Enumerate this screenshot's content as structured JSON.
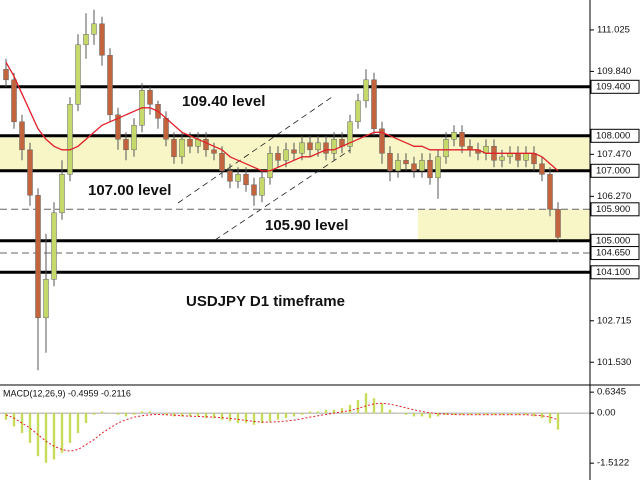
{
  "chart_data": {
    "type": "candlestick",
    "title": "USDJPY D1 timeframe",
    "open": [
      109.9,
      109.6,
      108.4,
      107.6,
      106.3,
      102.8,
      103.9,
      105.8,
      106.9,
      108.9,
      110.6,
      110.9,
      111.2,
      110.3,
      108.6,
      107.9,
      107.6,
      108.3,
      109.3,
      108.9,
      108.5,
      107.9,
      107.4,
      107.9,
      107.7,
      107.9,
      107.6,
      107.5,
      107.0,
      106.7,
      106.9,
      106.6,
      106.3,
      106.8,
      107.5,
      107.3,
      107.6,
      107.5,
      107.8,
      107.6,
      107.8,
      107.5,
      107.9,
      107.7,
      108.4,
      109.0,
      109.6,
      108.2,
      107.5,
      107.0,
      107.3,
      107.2,
      107.0,
      107.3,
      106.8,
      107.4,
      107.9,
      108.1,
      107.7,
      107.6,
      107.5,
      107.7,
      107.3,
      107.4,
      107.5,
      107.3,
      107.5,
      107.2,
      106.9,
      105.9
    ],
    "high": [
      110.2,
      109.8,
      108.6,
      107.8,
      106.5,
      105.2,
      106.1,
      107.3,
      109.1,
      110.9,
      111.5,
      111.6,
      111.4,
      110.5,
      108.8,
      108.1,
      108.5,
      109.5,
      109.4,
      109.0,
      108.7,
      108.1,
      108.1,
      108.1,
      108.1,
      108.1,
      107.8,
      107.7,
      107.2,
      107.1,
      107.1,
      106.8,
      107.0,
      107.7,
      107.7,
      107.8,
      107.8,
      108.0,
      108.0,
      108.0,
      108.0,
      108.1,
      108.1,
      108.6,
      109.2,
      109.9,
      109.8,
      108.4,
      107.7,
      107.5,
      107.5,
      107.4,
      107.5,
      107.5,
      107.6,
      108.1,
      108.3,
      108.3,
      107.9,
      107.8,
      107.9,
      107.9,
      107.6,
      107.7,
      107.7,
      107.7,
      107.7,
      107.4,
      107.1,
      106.1
    ],
    "low": [
      109.4,
      108.2,
      107.3,
      106.0,
      101.3,
      101.8,
      103.7,
      105.6,
      106.7,
      108.7,
      110.2,
      110.6,
      110.0,
      108.4,
      107.6,
      107.3,
      107.4,
      108.1,
      108.6,
      108.2,
      107.7,
      107.2,
      107.2,
      107.5,
      107.5,
      107.4,
      107.3,
      106.8,
      106.5,
      106.5,
      106.4,
      106.0,
      106.1,
      106.6,
      107.1,
      107.1,
      107.3,
      107.3,
      107.4,
      107.4,
      107.3,
      107.3,
      107.5,
      107.5,
      108.2,
      108.8,
      108.0,
      107.2,
      106.7,
      106.8,
      107.0,
      106.8,
      106.8,
      106.6,
      106.2,
      107.2,
      107.7,
      107.5,
      107.4,
      107.3,
      107.3,
      107.1,
      107.1,
      107.2,
      107.1,
      107.1,
      107.0,
      106.7,
      105.7,
      104.95
    ],
    "close": [
      109.6,
      108.4,
      107.6,
      106.3,
      102.8,
      103.9,
      105.8,
      106.9,
      108.9,
      110.6,
      110.9,
      111.2,
      110.3,
      108.6,
      107.9,
      107.6,
      108.3,
      109.3,
      108.9,
      108.5,
      107.9,
      107.4,
      107.9,
      107.7,
      107.9,
      107.6,
      107.5,
      107.0,
      106.7,
      106.9,
      106.6,
      106.3,
      106.8,
      107.5,
      107.3,
      107.6,
      107.5,
      107.8,
      107.6,
      107.8,
      107.5,
      107.9,
      107.7,
      108.4,
      109.0,
      109.6,
      108.2,
      107.5,
      107.0,
      107.3,
      107.2,
      107.0,
      107.3,
      106.8,
      107.4,
      107.9,
      108.1,
      107.7,
      107.6,
      107.5,
      107.7,
      107.3,
      107.4,
      107.5,
      107.3,
      107.5,
      107.2,
      106.9,
      105.9,
      105.1
    ],
    "colors": {
      "up": "#c5d86c",
      "down": "#c2643e",
      "wick": "#555555"
    },
    "ylim": [
      100.88,
      111.88
    ],
    "yticks": [
      111.025,
      {
        "value": 109.84,
        "label": "109.840"
      },
      {
        "value": 107.47,
        "label": "107.470"
      },
      {
        "value": 106.27,
        "label": "106.270"
      },
      102.715,
      {
        "value": 101.53,
        "label": "101.530"
      }
    ],
    "moving_average": {
      "color": "#e0202a",
      "values": [
        110.1,
        109.7,
        109.2,
        108.7,
        108.2,
        107.9,
        107.7,
        107.6,
        107.6,
        107.7,
        107.9,
        108.1,
        108.3,
        108.4,
        108.5,
        108.6,
        108.7,
        108.8,
        108.8,
        108.7,
        108.5,
        108.3,
        108.1,
        108.0,
        107.9,
        107.8,
        107.7,
        107.6,
        107.4,
        107.3,
        107.2,
        107.1,
        107.0,
        107.0,
        107.1,
        107.2,
        107.3,
        107.4,
        107.4,
        107.5,
        107.6,
        107.6,
        107.7,
        107.8,
        107.9,
        108.0,
        108.1,
        108.1,
        108.0,
        107.9,
        107.8,
        107.7,
        107.7,
        107.6,
        107.6,
        107.6,
        107.6,
        107.6,
        107.6,
        107.6,
        107.5,
        107.5,
        107.5,
        107.5,
        107.5,
        107.5,
        107.5,
        107.4,
        107.2,
        107.0
      ]
    },
    "levels": [
      {
        "value": 109.4,
        "label": "109.400",
        "style": "solid"
      },
      {
        "value": 108.0,
        "label": "108.000",
        "style": "solid"
      },
      {
        "value": 107.0,
        "label": "107.000",
        "style": "solid"
      },
      {
        "value": 105.9,
        "label": "105.900",
        "style": "dashed"
      },
      {
        "value": 105.0,
        "label": "105.000",
        "style": "solid"
      },
      {
        "value": 104.65,
        "label": "104.650",
        "style": "dashed"
      },
      {
        "value": 104.1,
        "label": "104.100",
        "style": "solid"
      }
    ],
    "zones": [
      [
        107.0,
        108.0
      ],
      [
        105.0,
        105.9
      ]
    ],
    "zone_color": "#f8f5c6",
    "annotations": [
      "109.40 level",
      "107.00 level",
      "105.90 level"
    ],
    "macd": {
      "label": "MACD(12,26,9) -0.4959 -0.2116",
      "histogram_color": "#c8dc5a",
      "signal_color": "#e0202a",
      "ylim": [
        -1.96,
        0.82
      ],
      "yticks": [
        0.6345,
        {
          "value": 0,
          "label": "0.00"
        },
        -1.5122
      ],
      "histogram": [
        -0.2,
        -0.4,
        -0.6,
        -0.9,
        -1.3,
        -1.5,
        -1.4,
        -1.2,
        -0.9,
        -0.6,
        -0.3,
        -0.05,
        0.05,
        0.0,
        -0.05,
        -0.1,
        -0.05,
        0.05,
        0.05,
        0.0,
        -0.05,
        -0.1,
        -0.1,
        -0.1,
        -0.1,
        -0.15,
        -0.15,
        -0.2,
        -0.25,
        -0.3,
        -0.3,
        -0.35,
        -0.3,
        -0.25,
        -0.2,
        -0.15,
        -0.1,
        -0.05,
        0.05,
        0.05,
        0.1,
        0.1,
        0.15,
        0.25,
        0.4,
        0.6,
        0.45,
        0.3,
        0.1,
        0.0,
        -0.05,
        -0.1,
        -0.1,
        -0.15,
        -0.1,
        -0.05,
        -0.05,
        -0.05,
        -0.05,
        -0.05,
        -0.05,
        -0.05,
        -0.05,
        -0.05,
        -0.05,
        -0.05,
        -0.1,
        -0.15,
        -0.3,
        -0.5
      ],
      "signal": [
        -0.05,
        -0.15,
        -0.3,
        -0.45,
        -0.65,
        -0.85,
        -1.0,
        -1.1,
        -1.15,
        -1.1,
        -0.95,
        -0.8,
        -0.6,
        -0.45,
        -0.3,
        -0.2,
        -0.12,
        -0.08,
        -0.05,
        -0.04,
        -0.05,
        -0.06,
        -0.08,
        -0.09,
        -0.1,
        -0.11,
        -0.12,
        -0.14,
        -0.16,
        -0.19,
        -0.22,
        -0.25,
        -0.27,
        -0.27,
        -0.26,
        -0.24,
        -0.21,
        -0.17,
        -0.12,
        -0.08,
        -0.04,
        0.0,
        0.04,
        0.08,
        0.14,
        0.22,
        0.28,
        0.3,
        0.27,
        0.22,
        0.16,
        0.1,
        0.05,
        0.01,
        -0.02,
        -0.03,
        -0.04,
        -0.05,
        -0.05,
        -0.05,
        -0.05,
        -0.05,
        -0.05,
        -0.05,
        -0.05,
        -0.05,
        -0.06,
        -0.08,
        -0.12,
        -0.2
      ]
    }
  }
}
